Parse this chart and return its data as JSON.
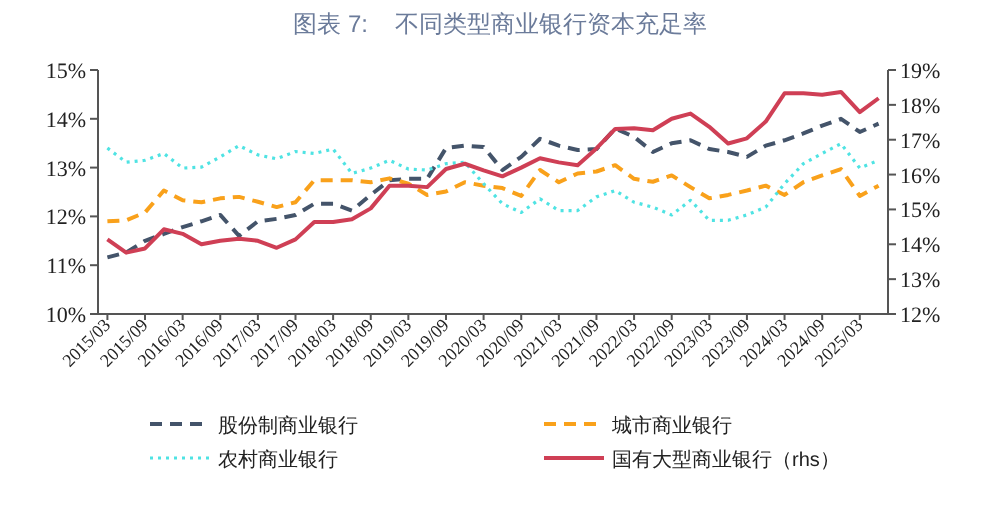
{
  "chart_data": {
    "type": "line",
    "title": "图表 7:    不同类型商业银行资本充足率",
    "categories": [
      "2015/03",
      null,
      "2015/09",
      null,
      "2016/03",
      null,
      "2016/09",
      null,
      "2017/03",
      null,
      "2017/09",
      null,
      "2018/03",
      null,
      "2018/09",
      null,
      "2019/03",
      null,
      "2019/09",
      null,
      "2020/03",
      null,
      "2020/09",
      null,
      "2021/03",
      null,
      "2021/09",
      null,
      "2022/03",
      null,
      "2022/09",
      null,
      "2023/03",
      null,
      "2023/09",
      null,
      "2024/03",
      null,
      "2024/09",
      null,
      "2025/03",
      null
    ],
    "ylim": [
      10,
      15
    ],
    "yticks": [
      {
        "value": 10,
        "label": "10%"
      },
      {
        "value": 11,
        "label": "11%"
      },
      {
        "value": 12,
        "label": "12%"
      },
      {
        "value": 13,
        "label": "13%"
      },
      {
        "value": 14,
        "label": "14%"
      },
      {
        "value": 15,
        "label": "15%"
      }
    ],
    "y2lim": [
      12,
      19
    ],
    "y2ticks": [
      {
        "value": 12,
        "label": "12%"
      },
      {
        "value": 13,
        "label": "13%"
      },
      {
        "value": 14,
        "label": "14%"
      },
      {
        "value": 15,
        "label": "15%"
      },
      {
        "value": 16,
        "label": "16%"
      },
      {
        "value": 17,
        "label": "17%"
      },
      {
        "value": 18,
        "label": "18%"
      },
      {
        "value": 19,
        "label": "19%"
      }
    ],
    "legend": "bottom",
    "series": [
      {
        "name": "股份制商业银行",
        "color": "#44546a",
        "line_style": "dashed",
        "values": [
          11.16,
          11.26,
          11.5,
          11.64,
          11.78,
          11.9,
          12.03,
          11.6,
          11.9,
          11.95,
          12.03,
          12.26,
          12.26,
          12.12,
          12.44,
          12.74,
          12.77,
          12.77,
          13.4,
          13.45,
          13.42,
          12.95,
          13.22,
          13.59,
          13.45,
          13.36,
          13.38,
          13.8,
          13.63,
          13.32,
          13.5,
          13.56,
          13.38,
          13.32,
          13.22,
          13.45,
          13.56,
          13.7,
          13.86,
          14.0,
          13.73,
          13.9
        ]
      },
      {
        "name": "城市商业银行",
        "color": "#f9a11b",
        "line_style": "dashed",
        "values": [
          11.9,
          11.92,
          12.08,
          12.53,
          12.33,
          12.29,
          12.37,
          12.4,
          12.3,
          12.19,
          12.29,
          12.74,
          12.74,
          12.74,
          12.7,
          12.78,
          12.67,
          12.44,
          12.51,
          12.7,
          12.63,
          12.58,
          12.42,
          12.95,
          12.7,
          12.88,
          12.92,
          13.05,
          12.77,
          12.71,
          12.84,
          12.6,
          12.37,
          12.44,
          12.53,
          12.63,
          12.44,
          12.7,
          12.84,
          12.97,
          12.42,
          12.63
        ]
      },
      {
        "name": "农村商业银行",
        "color": "#4fe3e3",
        "line_style": "dotted",
        "values": [
          13.4,
          13.11,
          13.15,
          13.29,
          12.99,
          13.01,
          13.22,
          13.45,
          13.26,
          13.18,
          13.33,
          13.29,
          13.38,
          12.88,
          12.99,
          13.15,
          12.97,
          12.95,
          13.08,
          13.11,
          12.67,
          12.26,
          12.08,
          12.36,
          12.12,
          12.12,
          12.4,
          12.53,
          12.29,
          12.19,
          12.03,
          12.33,
          11.92,
          11.92,
          12.03,
          12.19,
          12.67,
          13.08,
          13.29,
          13.49,
          12.99,
          13.15
        ]
      },
      {
        "name": "国有大型商业银行（rhs）",
        "color": "#cf3f55",
        "line_style": "solid",
        "axis": "y2",
        "values": [
          14.14,
          13.76,
          13.88,
          14.43,
          14.3,
          14.0,
          14.1,
          14.16,
          14.1,
          13.9,
          14.14,
          14.64,
          14.64,
          14.72,
          15.03,
          15.68,
          15.68,
          15.64,
          16.16,
          16.31,
          16.12,
          15.95,
          16.2,
          16.47,
          16.35,
          16.27,
          16.75,
          17.31,
          17.33,
          17.27,
          17.6,
          17.75,
          17.37,
          16.89,
          17.04,
          17.52,
          18.33,
          18.33,
          18.29,
          18.37,
          17.79,
          18.19
        ]
      }
    ]
  }
}
